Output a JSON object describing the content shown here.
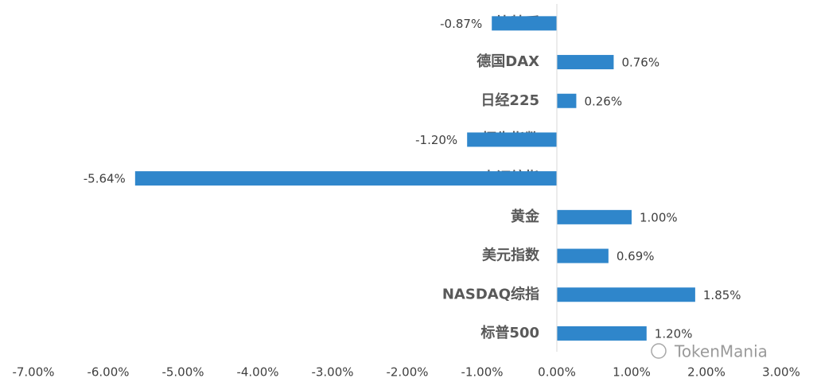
{
  "chart_data": {
    "type": "bar",
    "orientation": "horizontal",
    "categories": [
      "比特币",
      "德国DAX",
      "日经225",
      "恒生指数",
      "上证综指",
      "黄金",
      "美元指数",
      "NASDAQ综指",
      "标普500"
    ],
    "values": [
      -0.87,
      0.76,
      0.26,
      -1.2,
      -5.64,
      1.0,
      0.69,
      1.85,
      1.2
    ],
    "value_labels": [
      "-0.87%",
      "0.76%",
      "0.26%",
      "-1.20%",
      "-5.64%",
      "1.00%",
      "0.69%",
      "1.85%",
      "1.20%"
    ],
    "color": "#2f86cb",
    "xlim": [
      -7,
      3
    ],
    "xticks": [
      {
        "value": -7,
        "label": "-7.00%"
      },
      {
        "value": -6,
        "label": "-6.00%"
      },
      {
        "value": -5,
        "label": "-5.00%"
      },
      {
        "value": -4,
        "label": "-4.00%"
      },
      {
        "value": -3,
        "label": "-3.00%"
      },
      {
        "value": -2,
        "label": "-2.00%"
      },
      {
        "value": -1,
        "label": "-1.00%"
      },
      {
        "value": 0,
        "label": "0.00%"
      },
      {
        "value": 1,
        "label": "1.00%"
      },
      {
        "value": 2,
        "label": "2.00%"
      },
      {
        "value": 3,
        "label": "3.00%"
      }
    ],
    "grid": false,
    "watermark": "TokenMania"
  }
}
